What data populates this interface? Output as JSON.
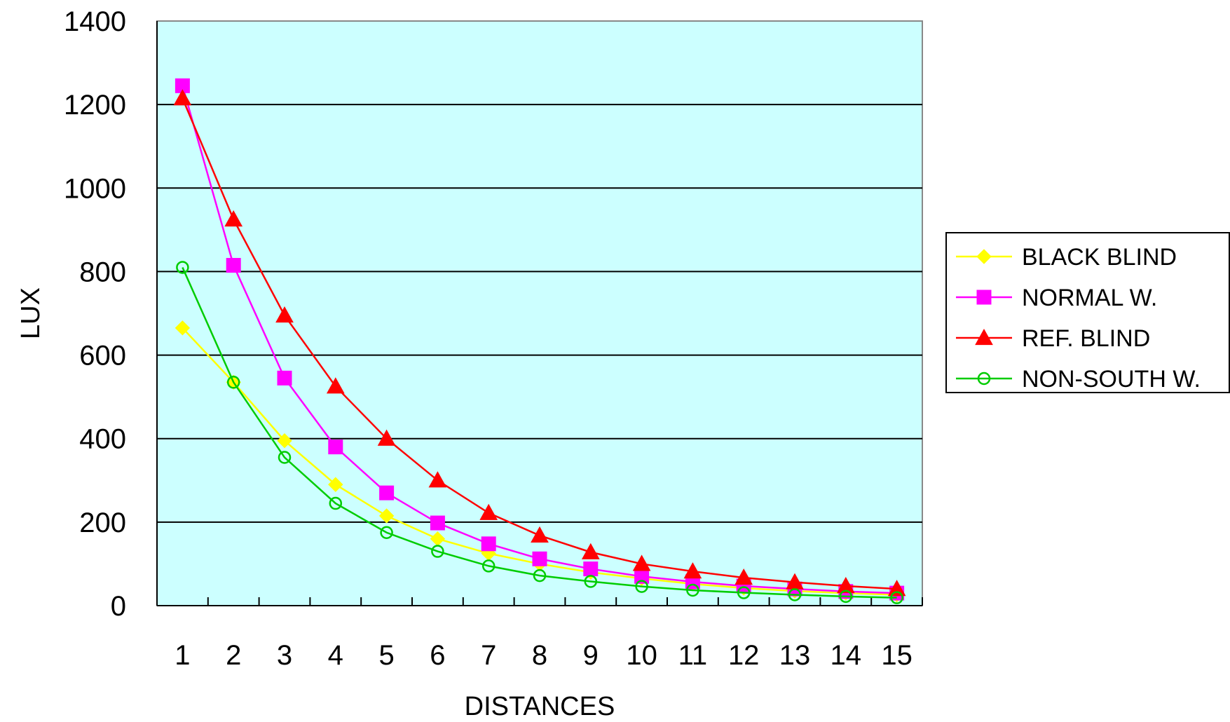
{
  "chart_data": {
    "type": "line",
    "title": "",
    "xlabel": "DISTANCES",
    "ylabel": "LUX",
    "categories": [
      "1",
      "2",
      "3",
      "4",
      "5",
      "6",
      "7",
      "8",
      "9",
      "10",
      "11",
      "12",
      "13",
      "14",
      "15"
    ],
    "ylim": [
      0,
      1400
    ],
    "yticks": [
      0,
      200,
      400,
      600,
      800,
      1000,
      1200,
      1400
    ],
    "yticks_labels": [
      "0",
      "200",
      "400",
      "600",
      "800",
      "1000",
      "1200",
      "1400"
    ],
    "grid": true,
    "legend_position": "right",
    "plot_background": "#ccffff",
    "series": [
      {
        "name": "BLACK BLIND",
        "color": "#ffff00",
        "marker": "diamond",
        "values": [
          665,
          535,
          395,
          290,
          215,
          160,
          125,
          100,
          80,
          65,
          52,
          42,
          35,
          30,
          26
        ]
      },
      {
        "name": "NORMAL W.",
        "color": "#ff00ff",
        "marker": "square",
        "values": [
          1245,
          815,
          545,
          380,
          270,
          198,
          148,
          112,
          88,
          70,
          57,
          47,
          40,
          34,
          30
        ]
      },
      {
        "name": "REF. BLIND",
        "color": "#ff0000",
        "marker": "triangle",
        "values": [
          1215,
          925,
          695,
          525,
          400,
          300,
          222,
          168,
          128,
          100,
          82,
          67,
          56,
          47,
          40
        ]
      },
      {
        "name": "NON-SOUTH W.",
        "color": "#00cc00",
        "marker": "circle-open",
        "values": [
          810,
          535,
          355,
          245,
          175,
          130,
          95,
          72,
          58,
          46,
          37,
          31,
          26,
          22,
          19
        ]
      }
    ]
  }
}
